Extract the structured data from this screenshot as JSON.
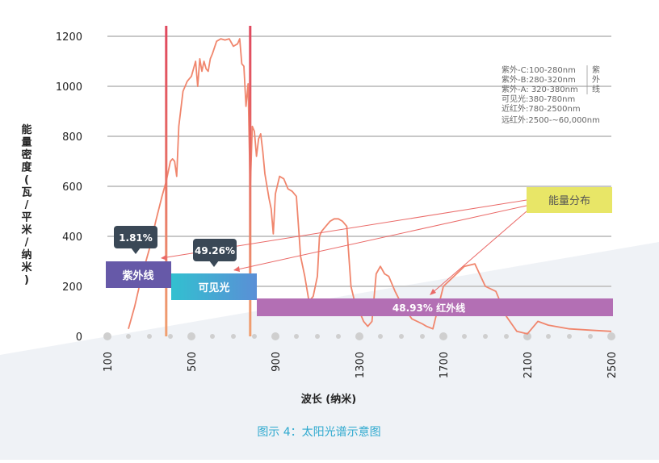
{
  "chart_data": {
    "type": "line",
    "title": "",
    "caption": "图示 4：太阳光谱示意图",
    "xlabel": "波长 (纳米)",
    "ylabel": "能量密度(瓦/平米/纳米)",
    "xlim": [
      100,
      2500
    ],
    "ylim": [
      0,
      1200
    ],
    "x_ticks": [
      "100",
      "500",
      "900",
      "1300",
      "1700",
      "2100",
      "2500"
    ],
    "y_ticks": [
      "0",
      "200",
      "400",
      "600",
      "800",
      "1000",
      "1200"
    ],
    "grid": true,
    "boundaries": [
      380,
      780
    ],
    "series": [
      {
        "x": [
          200,
          230,
          260,
          300,
          330,
          360,
          380,
          395,
          400,
          410,
          420,
          430,
          440,
          460,
          480,
          500,
          520,
          530,
          540,
          550,
          560,
          570,
          580,
          590,
          600,
          620,
          640,
          660,
          680,
          700,
          720,
          730,
          740,
          750,
          760,
          770,
          780,
          790,
          800,
          810,
          820,
          830,
          840,
          850,
          860,
          870,
          880,
          890,
          900,
          920,
          940,
          960,
          980,
          1000,
          1020,
          1040,
          1060,
          1080,
          1100,
          1110,
          1120,
          1130,
          1140,
          1160,
          1180,
          1200,
          1220,
          1240,
          1260,
          1280,
          1300,
          1320,
          1340,
          1360,
          1380,
          1400,
          1420,
          1440,
          1450,
          1470,
          1500,
          1550,
          1600,
          1620,
          1650,
          1700,
          1750,
          1800,
          1850,
          1900,
          1950,
          2000,
          2050,
          2100,
          2150,
          2200,
          2300,
          2400,
          2500
        ],
        "y": [
          30,
          120,
          230,
          350,
          460,
          560,
          620,
          680,
          700,
          710,
          700,
          640,
          840,
          980,
          1020,
          1040,
          1100,
          1000,
          1110,
          1060,
          1100,
          1070,
          1060,
          1110,
          1130,
          1180,
          1190,
          1185,
          1190,
          1160,
          1170,
          1190,
          1090,
          1080,
          920,
          1010,
          580,
          840,
          820,
          720,
          790,
          810,
          740,
          650,
          600,
          550,
          510,
          410,
          570,
          640,
          630,
          590,
          580,
          560,
          320,
          240,
          140,
          160,
          240,
          400,
          420,
          430,
          440,
          460,
          470,
          470,
          460,
          440,
          200,
          130,
          100,
          60,
          40,
          60,
          250,
          280,
          250,
          240,
          220,
          180,
          130,
          70,
          50,
          40,
          30,
          200,
          240,
          280,
          290,
          200,
          180,
          80,
          20,
          10,
          60,
          45,
          30,
          25,
          20
        ]
      }
    ],
    "bands": [
      {
        "label": "紫外线",
        "pct": "1.81%"
      },
      {
        "label": "可见光",
        "pct": "49.26%"
      },
      {
        "label": "48.93% 红外线"
      }
    ],
    "energy_label": "能量分布",
    "legend": [
      "紫外-C:100-280nm",
      "紫外-B:280-320nm",
      "紫外-A: 320-380nm",
      "可见光:380-780nm",
      "近红外:780-2500nm",
      "远红外:2500-~60,000nm"
    ],
    "legend_bracket": "紫外线",
    "colors": {
      "curve": "#f0866d",
      "boundary": "#e04a5e",
      "uv": "#6659a8",
      "visible": "#3bbcd0",
      "infrared": "#b36fb4",
      "energy": "#e8e667",
      "callout": "#3a4856",
      "grid": "#c8c8c8",
      "caption": "#2fa9cf"
    }
  }
}
